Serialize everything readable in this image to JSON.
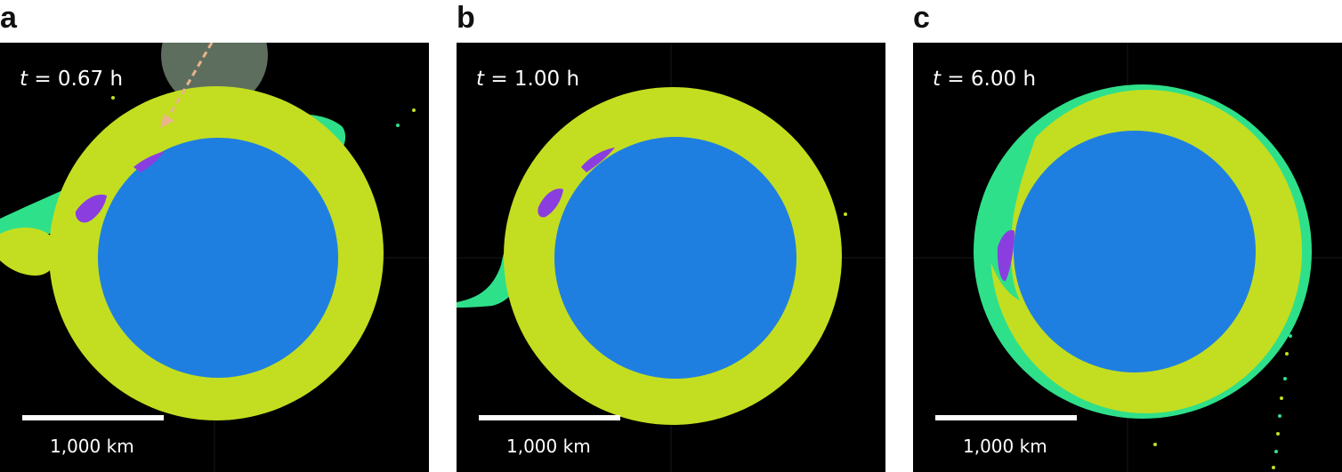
{
  "figure": {
    "panels": [
      {
        "letter": "a",
        "time_prefix": "t",
        "time_value": "= 0.67 h",
        "scale_label": "1,000 km"
      },
      {
        "letter": "b",
        "time_prefix": "t",
        "time_value": "= 1.00 h",
        "scale_label": "1,000 km"
      },
      {
        "letter": "c",
        "time_prefix": "t",
        "time_value": "= 6.00 h",
        "scale_label": "1,000 km"
      }
    ]
  },
  "colors": {
    "background": "#000000",
    "core": "#1f7fe0",
    "mantle": "#c3de20",
    "ejecta": "#2fe08a",
    "impactor_material": "#8a3ee0",
    "impactor_body": "#5e6e5e",
    "trajectory_arrow": "#e8b48a",
    "scale_bar": "#ffffff"
  }
}
